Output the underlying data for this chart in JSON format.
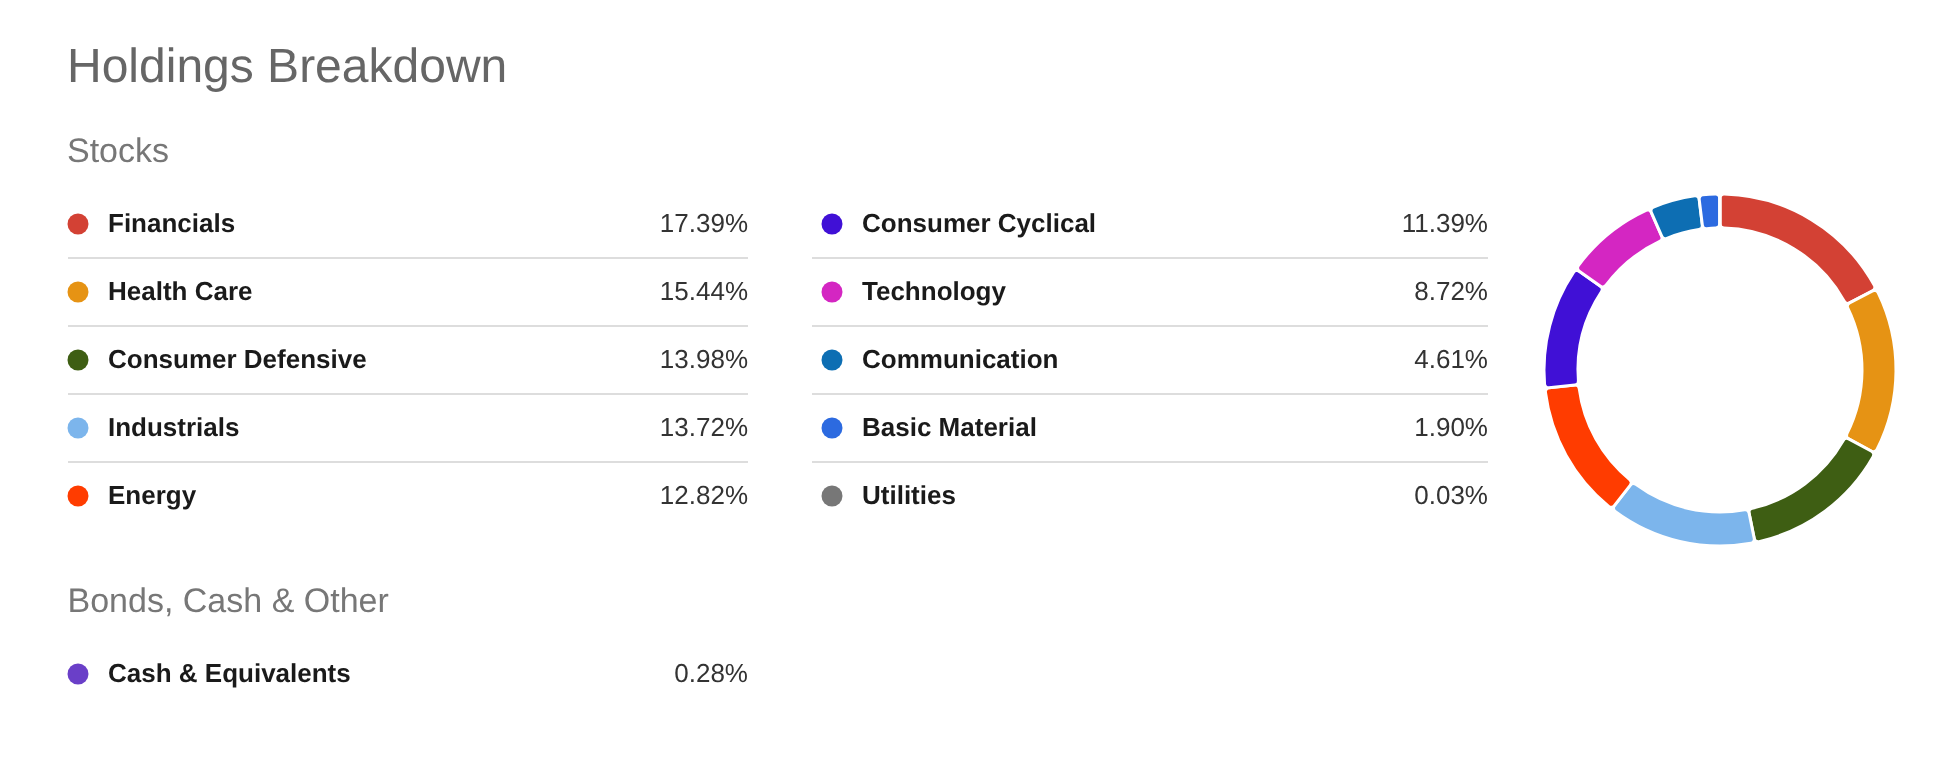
{
  "chart_data": [
    {
      "type": "donut",
      "title": "Holdings Breakdown",
      "subtitle": "Stocks",
      "legend": "left",
      "categories": [
        "Financials",
        "Health Care",
        "Consumer Defensive",
        "Industrials",
        "Energy",
        "Consumer Cyclical",
        "Technology",
        "Communication",
        "Basic Material",
        "Utilities"
      ],
      "values": [
        17.39,
        15.44,
        13.98,
        13.72,
        12.82,
        11.39,
        8.72,
        4.61,
        1.9,
        0.03
      ],
      "value_labels": [
        "17.39%",
        "15.44%",
        "13.98%",
        "13.72%",
        "12.82%",
        "11.39%",
        "8.72%",
        "4.61%",
        "1.90%",
        "0.03%"
      ],
      "colors": [
        "#d34134",
        "#e69314",
        "#3e5e13",
        "#7cb5ec",
        "#ff3c00",
        "#4010d6",
        "#d426c2",
        "#0d6eb3",
        "#2c6ae0",
        "#777777"
      ]
    },
    {
      "type": "other",
      "title": "Bonds, Cash & Other",
      "categories": [
        "Cash & Equivalents"
      ],
      "values": [
        0.28
      ],
      "value_labels": [
        "0.28%"
      ],
      "colors": [
        "#6a3fc8"
      ]
    }
  ]
}
